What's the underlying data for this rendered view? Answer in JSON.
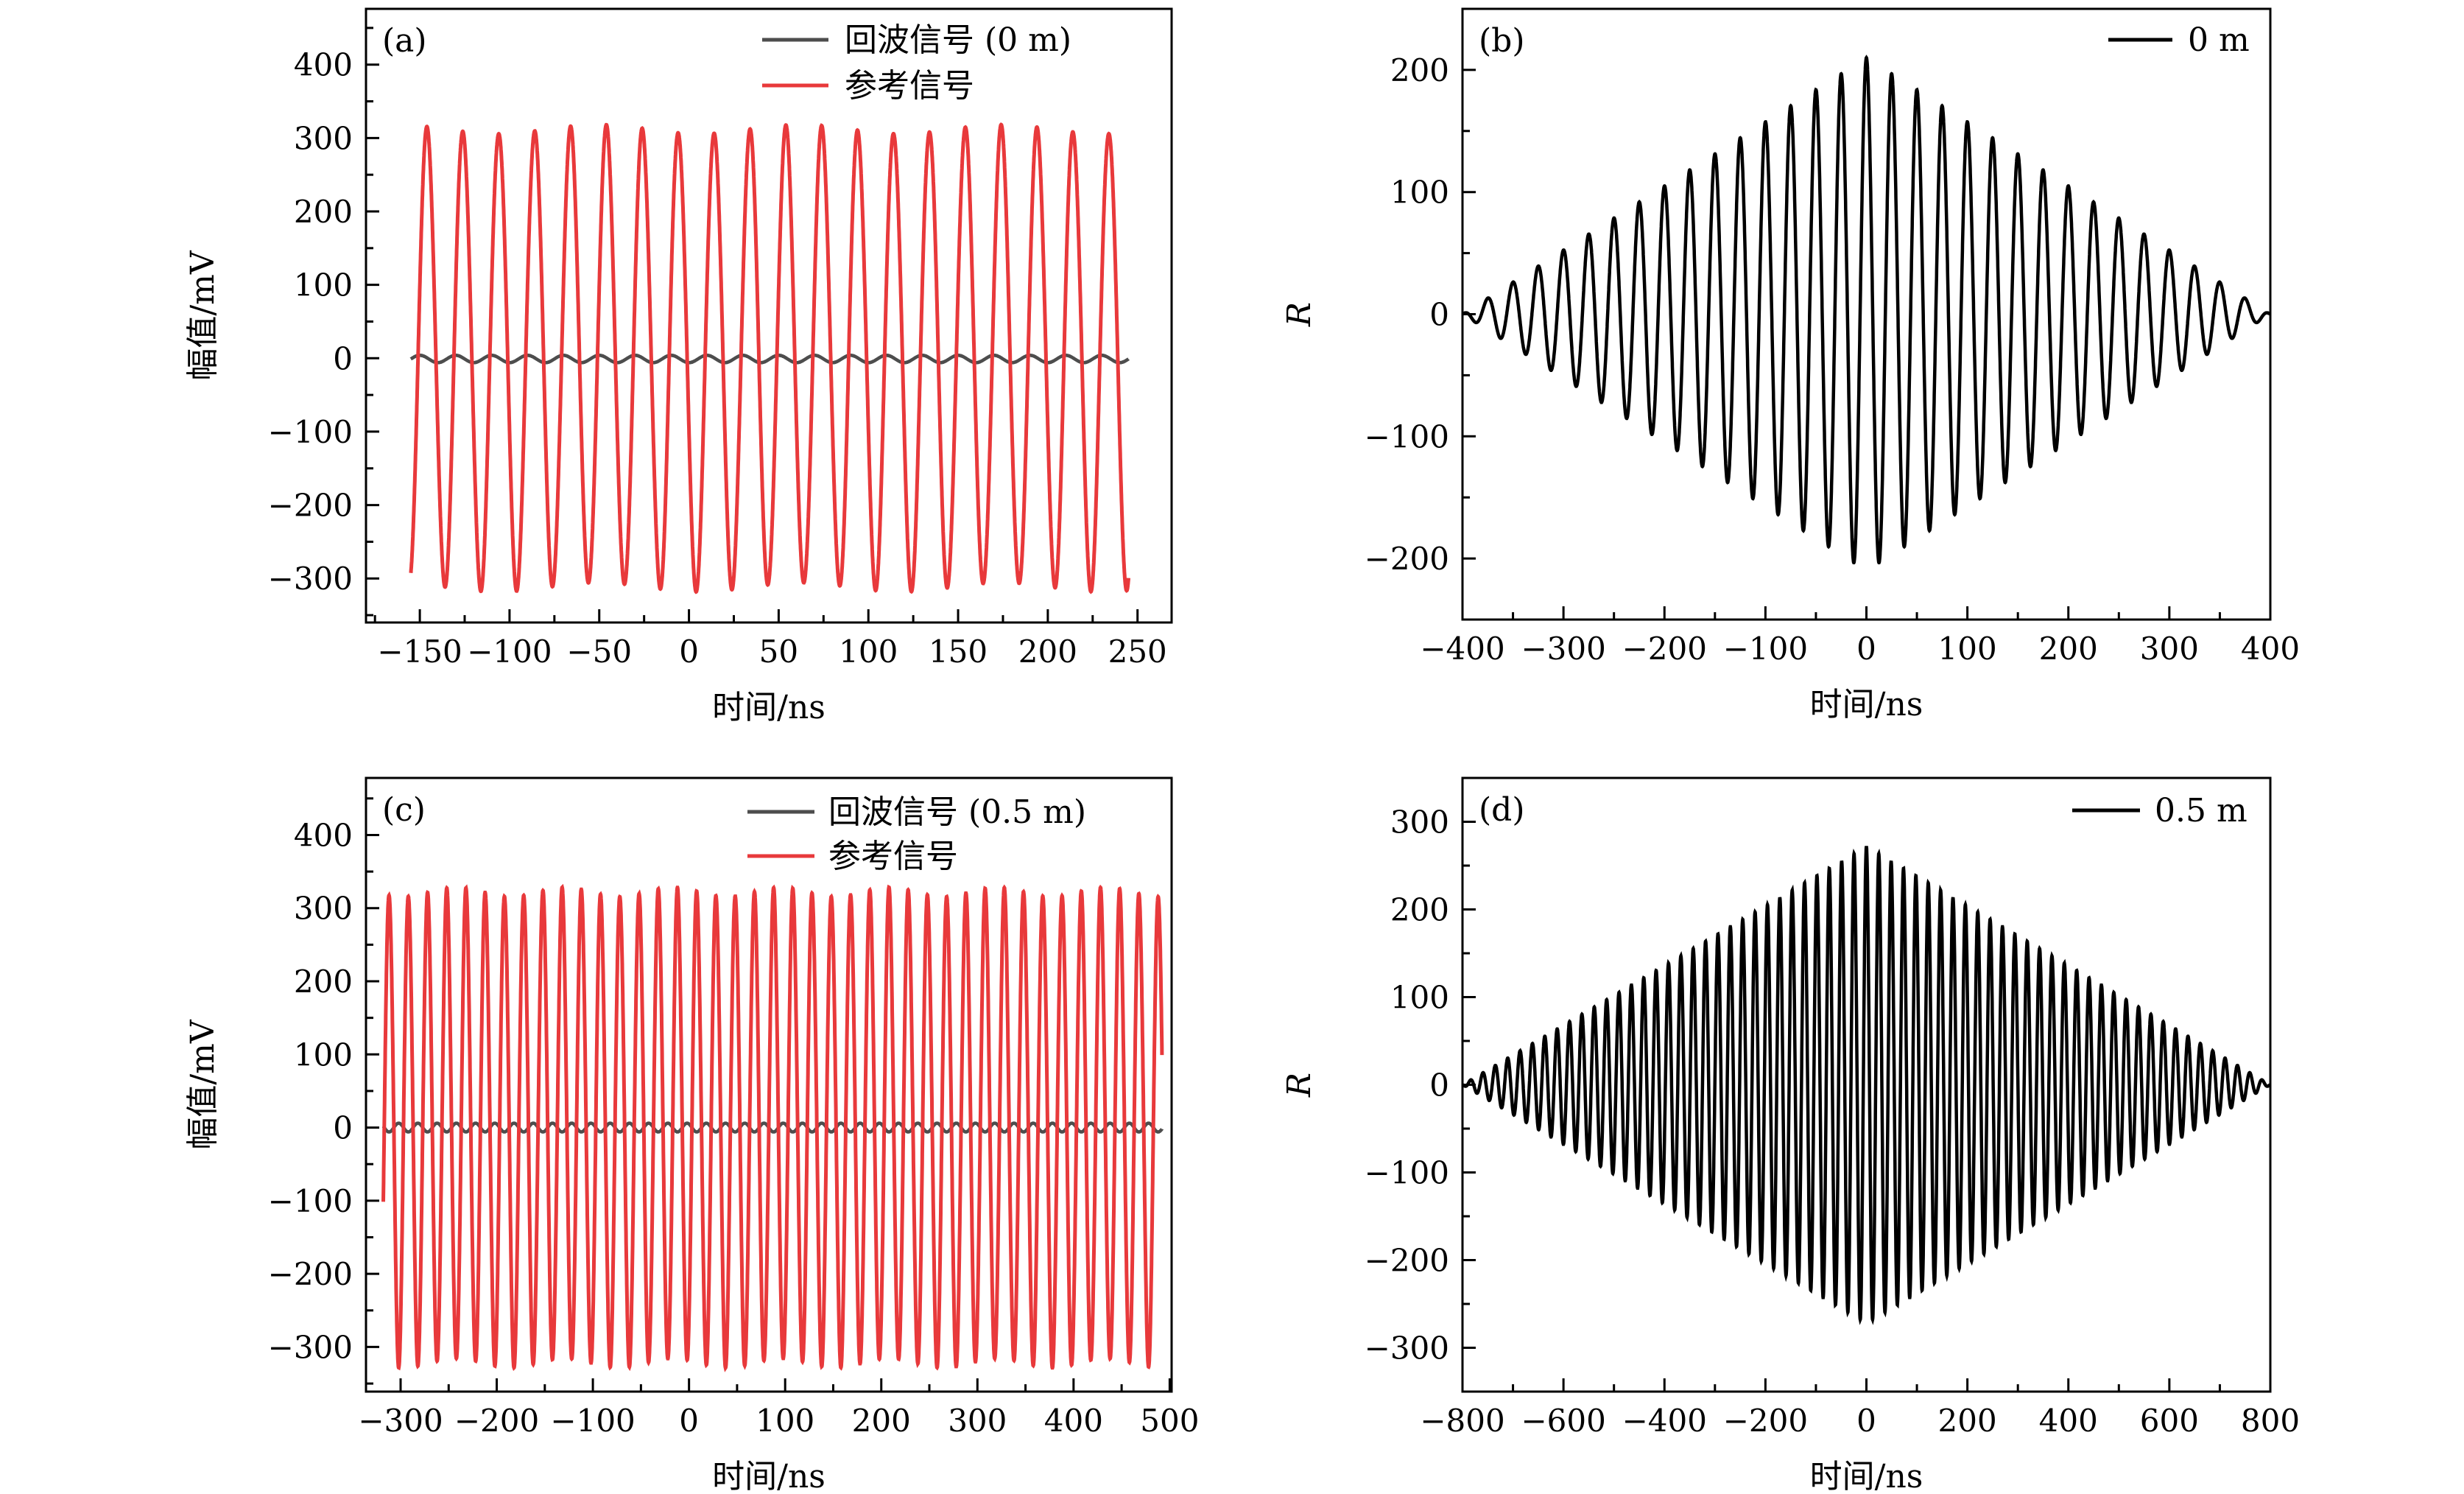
{
  "chart_data": [
    {
      "type": "line",
      "panel_label": "(a)",
      "xlabel": "时间/ns",
      "ylabel": "幅值/mV",
      "xlim": [
        -180,
        269
      ],
      "ylim": [
        -360,
        476
      ],
      "xticks": [
        -150,
        -100,
        -50,
        0,
        50,
        100,
        150,
        200,
        250
      ],
      "xtick_labels": [
        "−150",
        "−100",
        "−50",
        "0",
        "50",
        "100",
        "150",
        "200",
        "250"
      ],
      "xminor": 25,
      "yticks": [
        -300,
        -200,
        -100,
        0,
        100,
        200,
        300,
        400
      ],
      "ytick_labels": [
        "−300",
        "−200",
        "−100",
        "0",
        "100",
        "200",
        "300",
        "400"
      ],
      "yminor": 50,
      "legend_position": "top-right",
      "series": [
        {
          "name": "回波信号 (0 m)",
          "color": "#4d4d4d",
          "kind": "sine",
          "x_range": [
            -155,
            245
          ],
          "period_ns": 20,
          "amplitude": 5,
          "offset": -1,
          "phase": 0.5
        },
        {
          "name": "参考信号",
          "color": "#e8393b",
          "kind": "sine",
          "x_range": [
            -155,
            245
          ],
          "period_ns": 20,
          "amplitude": 312,
          "offset": 0,
          "phase": 0.3
        }
      ]
    },
    {
      "type": "line",
      "panel_label": "(b)",
      "xlabel": "时间/ns",
      "ylabel": "R",
      "xlim": [
        -400,
        400
      ],
      "ylim": [
        -250,
        250
      ],
      "xticks": [
        -400,
        -300,
        -200,
        -100,
        0,
        100,
        200,
        300,
        400
      ],
      "xtick_labels": [
        "−400",
        "−300",
        "−200",
        "−100",
        "0",
        "100",
        "200",
        "300",
        "400"
      ],
      "xminor": 50,
      "yticks": [
        -200,
        -100,
        0,
        100,
        200
      ],
      "ytick_labels": [
        "−200",
        "−100",
        "0",
        "100",
        "200"
      ],
      "yminor": 50,
      "legend_position": "top-right",
      "series": [
        {
          "name": "0 m",
          "color": "#000000",
          "kind": "triangle-envelope",
          "x_range": [
            -400,
            400
          ],
          "period_ns": 25,
          "peak": 210,
          "support_ns": 400
        }
      ]
    },
    {
      "type": "line",
      "panel_label": "(c)",
      "xlabel": "时间/ns",
      "ylabel": "幅值/mV",
      "xlim": [
        -336,
        502
      ],
      "ylim": [
        -361,
        478
      ],
      "xticks": [
        -300,
        -200,
        -100,
        0,
        100,
        200,
        300,
        400,
        500
      ],
      "xtick_labels": [
        "−300",
        "−200",
        "−100",
        "0",
        "100",
        "200",
        "300",
        "400",
        "500"
      ],
      "xminor": 50,
      "yticks": [
        -300,
        -200,
        -100,
        0,
        100,
        200,
        300,
        400
      ],
      "ytick_labels": [
        "−300",
        "−200",
        "−100",
        "0",
        "100",
        "200",
        "300",
        "400"
      ],
      "yminor": 50,
      "legend_position": "top-right",
      "series": [
        {
          "name": "回波信号 (0.5 m)",
          "color": "#4d4d4d",
          "kind": "sine",
          "x_range": [
            -318,
            492
          ],
          "period_ns": 20,
          "amplitude": 6,
          "offset": 0,
          "phase": 0.1
        },
        {
          "name": "参考信号",
          "color": "#e8393b",
          "kind": "sine",
          "x_range": [
            -318,
            492
          ],
          "period_ns": 20,
          "amplitude": 322,
          "offset": 0,
          "phase": 0.6
        }
      ]
    },
    {
      "type": "line",
      "panel_label": "(d)",
      "xlabel": "时间/ns",
      "ylabel": "R",
      "xlim": [
        -800,
        800
      ],
      "ylim": [
        -350,
        350
      ],
      "xticks": [
        -800,
        -600,
        -400,
        -200,
        0,
        200,
        400,
        600,
        800
      ],
      "xtick_labels": [
        "−800",
        "−600",
        "−400",
        "−200",
        "0",
        "200",
        "400",
        "600",
        "800"
      ],
      "xminor": 100,
      "yticks": [
        -300,
        -200,
        -100,
        0,
        100,
        200,
        300
      ],
      "ytick_labels": [
        "−300",
        "−200",
        "−100",
        "0",
        "100",
        "200",
        "300"
      ],
      "yminor": 50,
      "legend_position": "top-right",
      "series": [
        {
          "name": "0.5 m",
          "color": "#000000",
          "kind": "triangle-envelope",
          "x_range": [
            -800,
            800
          ],
          "period_ns": 24.5,
          "peak": 272,
          "support_ns": 800
        }
      ]
    }
  ]
}
